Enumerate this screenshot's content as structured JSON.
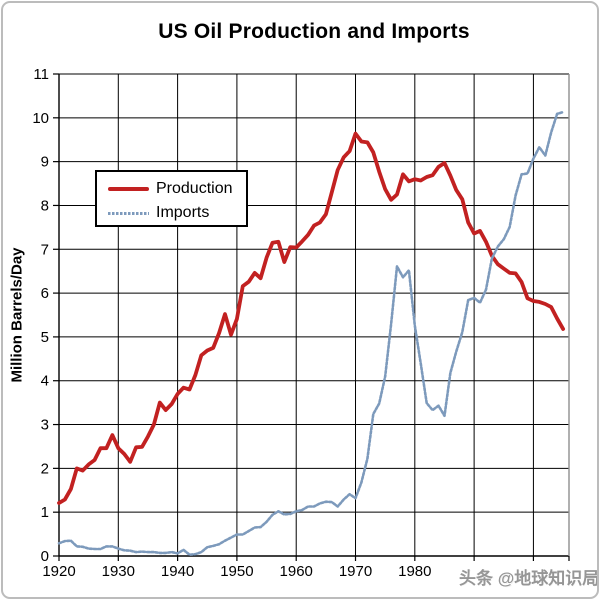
{
  "chart": {
    "title": "US Oil Production and Imports",
    "ylabel": "Million Barrels/Day"
  },
  "watermark": {
    "text": "头条 @地球知识局",
    "color": "#969696"
  },
  "chart_data": {
    "type": "line",
    "title": "US Oil Production and Imports",
    "xlabel": "",
    "ylabel": "Million Barrels/Day",
    "xlim": [
      1920,
      2006
    ],
    "ylim": [
      0,
      11
    ],
    "grid": true,
    "grid_color": "#000000",
    "axis_color": "#000000",
    "plot_border_right_color": "#8f8f8f",
    "legend_position": "upper-left-inside",
    "x_tick_labels": [
      "1920",
      "1930",
      "1940",
      "1950",
      "1960",
      "1970",
      "1980"
    ],
    "y_ticks": [
      0,
      1,
      2,
      3,
      4,
      5,
      6,
      7,
      8,
      9,
      10,
      11
    ],
    "x": [
      1920,
      1921,
      1922,
      1923,
      1924,
      1925,
      1926,
      1927,
      1928,
      1929,
      1930,
      1931,
      1932,
      1933,
      1934,
      1935,
      1936,
      1937,
      1938,
      1939,
      1940,
      1941,
      1942,
      1943,
      1944,
      1945,
      1946,
      1947,
      1948,
      1949,
      1950,
      1951,
      1952,
      1953,
      1954,
      1955,
      1956,
      1957,
      1958,
      1959,
      1960,
      1961,
      1962,
      1963,
      1964,
      1965,
      1966,
      1967,
      1968,
      1969,
      1970,
      1971,
      1972,
      1973,
      1974,
      1975,
      1976,
      1977,
      1978,
      1979,
      1980,
      1981,
      1982,
      1983,
      1984,
      1985,
      1986,
      1987,
      1988,
      1989,
      1990,
      1991,
      1992,
      1993,
      1994,
      1995,
      1996,
      1997,
      1998,
      1999,
      2000,
      2001,
      2002,
      2003,
      2004,
      2005
    ],
    "series": [
      {
        "name": "Production",
        "color": "#c22121",
        "style": "solid",
        "line_width": 3.8,
        "values": [
          1.21,
          1.29,
          1.53,
          2.0,
          1.95,
          2.09,
          2.19,
          2.46,
          2.46,
          2.76,
          2.46,
          2.33,
          2.15,
          2.48,
          2.49,
          2.73,
          3.0,
          3.5,
          3.33,
          3.47,
          3.7,
          3.84,
          3.8,
          4.13,
          4.58,
          4.69,
          4.75,
          5.09,
          5.52,
          5.05,
          5.41,
          6.16,
          6.26,
          6.46,
          6.34,
          6.81,
          7.15,
          7.17,
          6.71,
          7.05,
          7.04,
          7.18,
          7.33,
          7.54,
          7.61,
          7.8,
          8.3,
          8.81,
          9.1,
          9.24,
          9.64,
          9.46,
          9.44,
          9.21,
          8.77,
          8.37,
          8.13,
          8.25,
          8.71,
          8.55,
          8.6,
          8.57,
          8.65,
          8.69,
          8.88,
          8.97,
          8.68,
          8.35,
          8.14,
          7.61,
          7.36,
          7.42,
          7.17,
          6.85,
          6.66,
          6.56,
          6.46,
          6.45,
          6.25,
          5.88,
          5.82,
          5.8,
          5.75,
          5.68,
          5.42,
          5.18
        ]
      },
      {
        "name": "Imports",
        "color": "#7d9abc",
        "style": "dotted",
        "line_width": 2.6,
        "values": [
          0.29,
          0.34,
          0.35,
          0.22,
          0.21,
          0.17,
          0.16,
          0.16,
          0.22,
          0.22,
          0.17,
          0.13,
          0.12,
          0.09,
          0.1,
          0.09,
          0.09,
          0.07,
          0.07,
          0.09,
          0.06,
          0.14,
          0.03,
          0.04,
          0.09,
          0.2,
          0.23,
          0.27,
          0.35,
          0.42,
          0.49,
          0.49,
          0.57,
          0.65,
          0.66,
          0.78,
          0.94,
          1.02,
          0.95,
          0.96,
          1.02,
          1.05,
          1.13,
          1.13,
          1.2,
          1.24,
          1.23,
          1.13,
          1.29,
          1.41,
          1.32,
          1.68,
          2.22,
          3.24,
          3.48,
          4.1,
          5.29,
          6.61,
          6.36,
          6.52,
          5.26,
          4.4,
          3.49,
          3.33,
          3.43,
          3.2,
          4.18,
          4.67,
          5.11,
          5.84,
          5.89,
          5.78,
          6.08,
          6.79,
          7.06,
          7.23,
          7.51,
          8.23,
          8.71,
          8.73,
          9.07,
          9.33,
          9.14,
          9.67,
          10.09,
          10.13
        ]
      }
    ]
  }
}
